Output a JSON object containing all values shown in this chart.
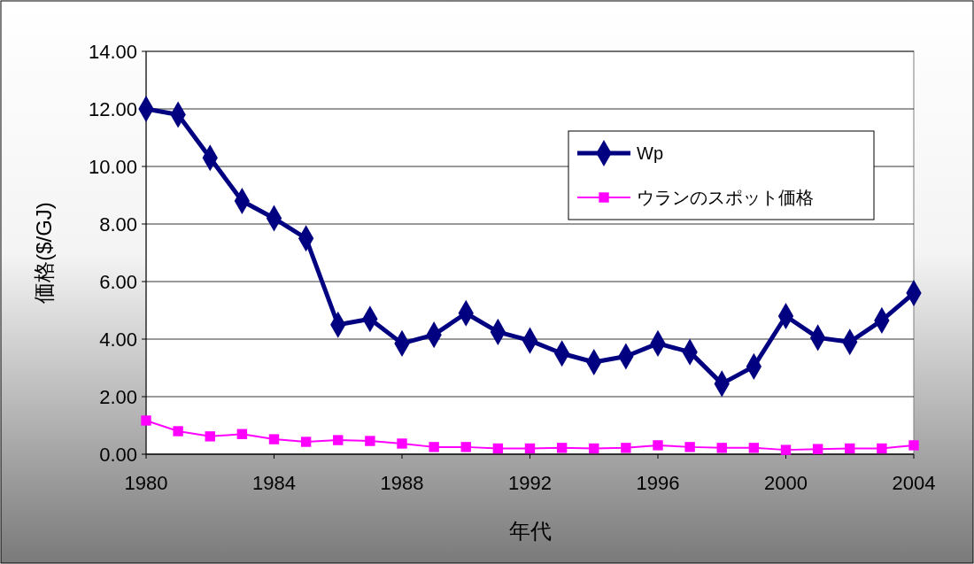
{
  "chart_data": {
    "type": "line",
    "xlabel": "年代",
    "ylabel": "価格($/GJ)",
    "x": [
      1980,
      1981,
      1982,
      1983,
      1984,
      1985,
      1986,
      1987,
      1988,
      1989,
      1990,
      1991,
      1992,
      1993,
      1994,
      1995,
      1996,
      1997,
      1998,
      1999,
      2000,
      2001,
      2002,
      2003,
      2004
    ],
    "series": [
      {
        "name": "Wp",
        "color": "#000080",
        "marker": "diamond",
        "values": [
          12.0,
          11.8,
          10.3,
          8.8,
          8.2,
          7.5,
          4.5,
          4.7,
          3.85,
          4.15,
          4.9,
          4.25,
          3.95,
          3.5,
          3.2,
          3.4,
          3.85,
          3.55,
          2.45,
          3.05,
          4.8,
          4.05,
          3.9,
          4.65,
          5.6
        ]
      },
      {
        "name": "ウランのスポット価格",
        "color": "#ff00ff",
        "marker": "square",
        "values": [
          1.17,
          0.8,
          0.62,
          0.7,
          0.52,
          0.43,
          0.49,
          0.46,
          0.37,
          0.25,
          0.25,
          0.2,
          0.2,
          0.22,
          0.2,
          0.22,
          0.31,
          0.25,
          0.22,
          0.22,
          0.15,
          0.18,
          0.2,
          0.2,
          0.31
        ]
      }
    ],
    "xlim": [
      1980,
      2004
    ],
    "xticks": [
      1980,
      1984,
      1988,
      1992,
      1996,
      2000,
      2004
    ],
    "ylim": [
      0,
      14
    ],
    "yticks": [
      {
        "value": 0,
        "label": "0.00"
      },
      {
        "value": 2,
        "label": "2.00"
      },
      {
        "value": 4,
        "label": "4.00"
      },
      {
        "value": 6,
        "label": "6.00"
      },
      {
        "value": 8,
        "label": "8.00"
      },
      {
        "value": 10,
        "label": "10.00"
      },
      {
        "value": 12,
        "label": "12.00"
      },
      {
        "value": 14,
        "label": "14.00"
      }
    ],
    "grid": "y",
    "legend": "top right"
  }
}
